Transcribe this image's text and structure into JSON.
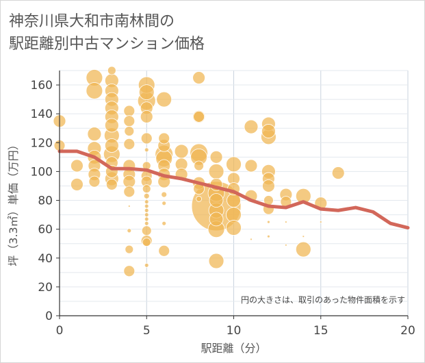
{
  "title_lines": [
    "神奈川県大和市南林間の",
    "駅距離別中古マンション価格"
  ],
  "colors": {
    "bubble": "#f0b552",
    "line": "#d2675a",
    "grid": "#c9d3de",
    "plot_bg": "#ffffff"
  },
  "chart_data": {
    "type": "scatter",
    "title": "神奈川県大和市南林間の駅距離別中古マンション価格",
    "xlabel": "駅距離（分）",
    "ylabel": "坪（3.3㎡）単価（万円）",
    "xlim": [
      0,
      20
    ],
    "ylim": [
      0,
      170
    ],
    "x_ticks": [
      "0",
      "5",
      "10",
      "15",
      "20"
    ],
    "y_ticks": [
      "0",
      "20",
      "40",
      "60",
      "80",
      "100",
      "120",
      "140",
      "160"
    ],
    "x_tick_values": [
      0,
      5,
      10,
      15,
      20
    ],
    "y_tick_values": [
      0,
      20,
      40,
      60,
      80,
      100,
      120,
      140,
      160
    ],
    "grid": true,
    "note": "円の大きさは、取引のあった物件面積を示す",
    "bubbles": [
      {
        "x": 0,
        "y": 135,
        "size": 9
      },
      {
        "x": 0,
        "y": 118,
        "size": 8
      },
      {
        "x": 1,
        "y": 104,
        "size": 9
      },
      {
        "x": 1,
        "y": 91,
        "size": 9
      },
      {
        "x": 2,
        "y": 165,
        "size": 12
      },
      {
        "x": 2,
        "y": 156,
        "size": 12
      },
      {
        "x": 2,
        "y": 126,
        "size": 10
      },
      {
        "x": 2,
        "y": 116,
        "size": 10
      },
      {
        "x": 2,
        "y": 110,
        "size": 10
      },
      {
        "x": 2,
        "y": 104,
        "size": 9
      },
      {
        "x": 2,
        "y": 98,
        "size": 9
      },
      {
        "x": 2,
        "y": 93,
        "size": 8
      },
      {
        "x": 3,
        "y": 170,
        "size": 6
      },
      {
        "x": 3,
        "y": 163,
        "size": 10
      },
      {
        "x": 3,
        "y": 156,
        "size": 10
      },
      {
        "x": 3,
        "y": 150,
        "size": 10
      },
      {
        "x": 3,
        "y": 144,
        "size": 10
      },
      {
        "x": 3,
        "y": 138,
        "size": 10
      },
      {
        "x": 3,
        "y": 132,
        "size": 10
      },
      {
        "x": 3,
        "y": 125,
        "size": 11
      },
      {
        "x": 3,
        "y": 118,
        "size": 10
      },
      {
        "x": 3,
        "y": 112,
        "size": 12
      },
      {
        "x": 3,
        "y": 106,
        "size": 9
      },
      {
        "x": 3,
        "y": 100,
        "size": 9
      },
      {
        "x": 3,
        "y": 95,
        "size": 10
      },
      {
        "x": 3,
        "y": 91,
        "size": 8
      },
      {
        "x": 4,
        "y": 142,
        "size": 8
      },
      {
        "x": 4,
        "y": 135,
        "size": 8
      },
      {
        "x": 4,
        "y": 128,
        "size": 7
      },
      {
        "x": 4,
        "y": 119,
        "size": 8
      },
      {
        "x": 4,
        "y": 104,
        "size": 9
      },
      {
        "x": 4,
        "y": 98,
        "size": 9
      },
      {
        "x": 4,
        "y": 93,
        "size": 9
      },
      {
        "x": 4,
        "y": 86,
        "size": 8
      },
      {
        "x": 4,
        "y": 76,
        "size": 1.5
      },
      {
        "x": 4,
        "y": 59,
        "size": 3
      },
      {
        "x": 4,
        "y": 46,
        "size": 6
      },
      {
        "x": 4,
        "y": 31,
        "size": 8
      },
      {
        "x": 5,
        "y": 160,
        "size": 12
      },
      {
        "x": 5,
        "y": 155,
        "size": 11
      },
      {
        "x": 5,
        "y": 149,
        "size": 13
      },
      {
        "x": 5,
        "y": 144,
        "size": 9
      },
      {
        "x": 5,
        "y": 138,
        "size": 9
      },
      {
        "x": 5,
        "y": 123,
        "size": 8
      },
      {
        "x": 5,
        "y": 115,
        "size": 3
      },
      {
        "x": 5,
        "y": 104,
        "size": 6
      },
      {
        "x": 5,
        "y": 97,
        "size": 8
      },
      {
        "x": 5,
        "y": 93,
        "size": 8
      },
      {
        "x": 5,
        "y": 88,
        "size": 6
      },
      {
        "x": 5,
        "y": 83,
        "size": 4
      },
      {
        "x": 5,
        "y": 79,
        "size": 3
      },
      {
        "x": 5,
        "y": 76,
        "size": 3
      },
      {
        "x": 5,
        "y": 73,
        "size": 3
      },
      {
        "x": 5,
        "y": 70,
        "size": 3
      },
      {
        "x": 5,
        "y": 67,
        "size": 3
      },
      {
        "x": 5,
        "y": 64,
        "size": 3
      },
      {
        "x": 5,
        "y": 59,
        "size": 7
      },
      {
        "x": 5,
        "y": 52,
        "size": 8
      },
      {
        "x": 5,
        "y": 51,
        "size": 6
      },
      {
        "x": 5,
        "y": 35,
        "size": 3
      },
      {
        "x": 6,
        "y": 150,
        "size": 11
      },
      {
        "x": 6,
        "y": 123,
        "size": 8
      },
      {
        "x": 6,
        "y": 118,
        "size": 9
      },
      {
        "x": 6,
        "y": 112,
        "size": 13
      },
      {
        "x": 6,
        "y": 109,
        "size": 12
      },
      {
        "x": 6,
        "y": 104,
        "size": 9
      },
      {
        "x": 6,
        "y": 98,
        "size": 9
      },
      {
        "x": 6,
        "y": 93,
        "size": 9
      },
      {
        "x": 6,
        "y": 84,
        "size": 4
      },
      {
        "x": 6,
        "y": 78,
        "size": 3
      },
      {
        "x": 6,
        "y": 64,
        "size": 3
      },
      {
        "x": 6,
        "y": 45,
        "size": 8
      },
      {
        "x": 7,
        "y": 114,
        "size": 10
      },
      {
        "x": 7,
        "y": 105,
        "size": 9
      },
      {
        "x": 7,
        "y": 98,
        "size": 9
      },
      {
        "x": 8,
        "y": 165,
        "size": 9
      },
      {
        "x": 8,
        "y": 138,
        "size": 9
      },
      {
        "x": 8,
        "y": 138,
        "size": 8
      },
      {
        "x": 8,
        "y": 113,
        "size": 13
      },
      {
        "x": 8,
        "y": 110,
        "size": 12
      },
      {
        "x": 8,
        "y": 104,
        "size": 7
      },
      {
        "x": 8,
        "y": 92,
        "size": 9
      },
      {
        "x": 8,
        "y": 88,
        "size": 8
      },
      {
        "x": 8,
        "y": 81,
        "size": 4
      },
      {
        "x": 9,
        "y": 110,
        "size": 9
      },
      {
        "x": 9,
        "y": 100,
        "size": 11
      },
      {
        "x": 9,
        "y": 91,
        "size": 9
      },
      {
        "x": 9,
        "y": 85,
        "size": 12
      },
      {
        "x": 9,
        "y": 80,
        "size": 10
      },
      {
        "x": 9,
        "y": 76,
        "size": 36
      },
      {
        "x": 9,
        "y": 73,
        "size": 11
      },
      {
        "x": 9,
        "y": 67,
        "size": 10
      },
      {
        "x": 9,
        "y": 60,
        "size": 12
      },
      {
        "x": 9,
        "y": 38,
        "size": 11
      },
      {
        "x": 10,
        "y": 105,
        "size": 11
      },
      {
        "x": 10,
        "y": 95,
        "size": 9
      },
      {
        "x": 10,
        "y": 88,
        "size": 9
      },
      {
        "x": 10,
        "y": 80,
        "size": 10
      },
      {
        "x": 10,
        "y": 70,
        "size": 11
      },
      {
        "x": 10,
        "y": 61,
        "size": 11
      },
      {
        "x": 11,
        "y": 131,
        "size": 10
      },
      {
        "x": 11,
        "y": 104,
        "size": 9
      },
      {
        "x": 11,
        "y": 83,
        "size": 9
      },
      {
        "x": 11,
        "y": 53,
        "size": 1.5
      },
      {
        "x": 12,
        "y": 133,
        "size": 10
      },
      {
        "x": 12,
        "y": 128,
        "size": 10
      },
      {
        "x": 12,
        "y": 124,
        "size": 11
      },
      {
        "x": 12,
        "y": 100,
        "size": 10
      },
      {
        "x": 12,
        "y": 95,
        "size": 9
      },
      {
        "x": 12,
        "y": 90,
        "size": 9
      },
      {
        "x": 12,
        "y": 80,
        "size": 7
      },
      {
        "x": 12,
        "y": 74,
        "size": 8
      },
      {
        "x": 12,
        "y": 65,
        "size": 2
      },
      {
        "x": 12,
        "y": 55,
        "size": 2
      },
      {
        "x": 13,
        "y": 84,
        "size": 9
      },
      {
        "x": 13,
        "y": 79,
        "size": 8
      },
      {
        "x": 13,
        "y": 65,
        "size": 1.5
      },
      {
        "x": 13,
        "y": 49,
        "size": 1.5
      },
      {
        "x": 14,
        "y": 83,
        "size": 11
      },
      {
        "x": 14,
        "y": 55,
        "size": 1.5
      },
      {
        "x": 14,
        "y": 46,
        "size": 11
      },
      {
        "x": 15,
        "y": 78,
        "size": 9
      },
      {
        "x": 15,
        "y": 65,
        "size": 1.5
      },
      {
        "x": 16,
        "y": 99,
        "size": 9
      }
    ],
    "series": [
      {
        "type": "line",
        "x": [
          0,
          1,
          2,
          3,
          4,
          5,
          6,
          7,
          8,
          9,
          10,
          11,
          12,
          13,
          14,
          15,
          16,
          17,
          18,
          19,
          20
        ],
        "values": [
          114,
          114,
          110,
          102,
          102,
          101,
          97,
          95,
          92,
          89,
          86,
          80,
          76,
          75,
          79,
          74,
          73,
          75,
          72,
          64,
          61
        ]
      }
    ]
  }
}
